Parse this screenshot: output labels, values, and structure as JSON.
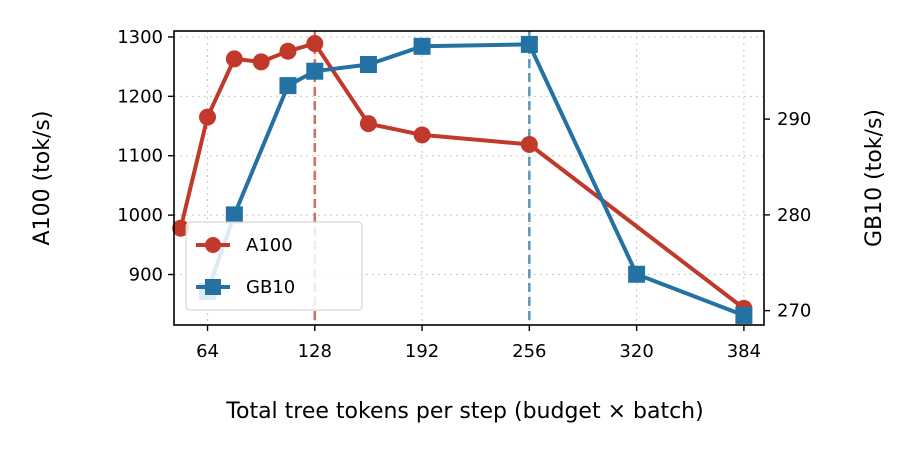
{
  "chart_data": {
    "type": "line",
    "title": "",
    "xlabel": "Total tree tokens per step  (budget × batch)",
    "ylabel": "A100 (tok/s)",
    "y2label": "GB10 (tok/s)",
    "xlim": [
      44,
      396
    ],
    "ylim": [
      815,
      1310
    ],
    "y2lim": [
      268.5,
      299.2
    ],
    "xticks": [
      64,
      128,
      192,
      256,
      320,
      384
    ],
    "yticks": [
      900,
      1000,
      1100,
      1200,
      1300
    ],
    "y2ticks": [
      270,
      280,
      290
    ],
    "grid": true,
    "legend_position": "lower-left",
    "series": [
      {
        "name": "A100",
        "axis": "left",
        "color": "#c0392b",
        "marker": "circle",
        "x": [
          48,
          64,
          80,
          96,
          112,
          128,
          160,
          192,
          256,
          384
        ],
        "y": [
          978,
          1165,
          1263,
          1258,
          1276,
          1289,
          1154,
          1135,
          1119,
          843
        ]
      },
      {
        "name": "GB10",
        "axis": "right",
        "color": "#2471a3",
        "marker": "square",
        "x": [
          64,
          80,
          112,
          128,
          160,
          192,
          256,
          320,
          384
        ],
        "y": [
          272,
          280,
          293.5,
          295,
          295.7,
          297.6,
          297.8,
          273.8,
          269.5
        ]
      }
    ],
    "reference_lines": [
      {
        "x": 128,
        "color": "#c0392b"
      },
      {
        "x": 256,
        "color": "#2471a3"
      }
    ]
  }
}
